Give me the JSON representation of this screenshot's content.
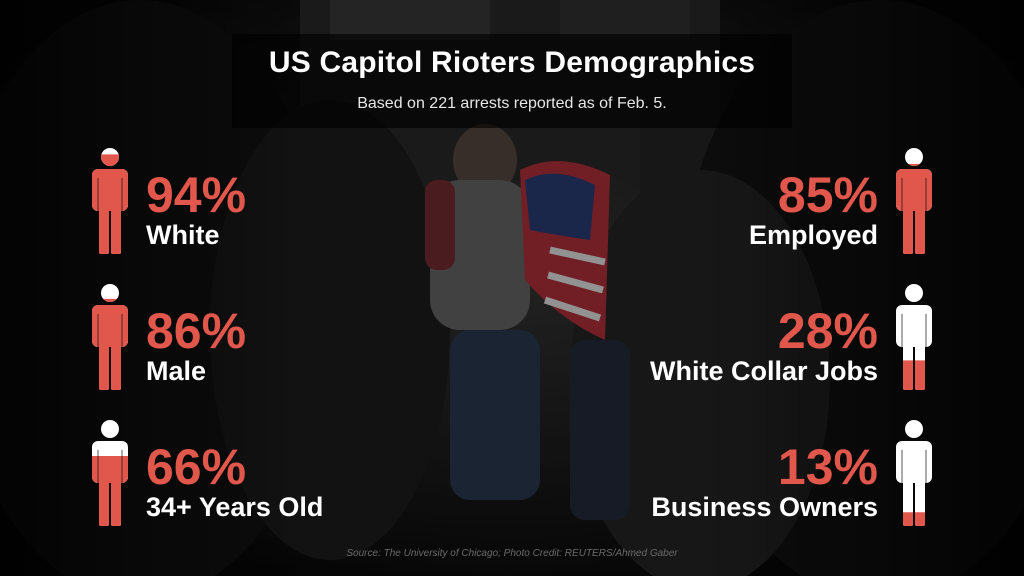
{
  "title": "US Capitol Rioters Demographics",
  "subtitle": "Based on 221 arrests reported as of Feb. 5.",
  "source": "Source: The University of Chicago; Photo Credit: REUTERS/Ahmed Gaber",
  "colors": {
    "accent": "#e1574c",
    "figure_empty": "#ffffff",
    "text": "#ffffff",
    "background": "#0b0b0b"
  },
  "icons": [
    "person-icon"
  ],
  "chart_data": {
    "type": "pictograph",
    "title": "US Capitol Rioters Demographics",
    "subtitle": "Based on 221 arrests reported as of Feb. 5.",
    "categories": [
      "White",
      "Male",
      "34+ Years Old",
      "Employed",
      "White Collar Jobs",
      "Business Owners"
    ],
    "values": [
      94,
      86,
      66,
      85,
      28,
      13
    ],
    "unit": "%",
    "stats": [
      {
        "id": "white",
        "value": 94,
        "display": "94%",
        "label": "White",
        "column": "left"
      },
      {
        "id": "male",
        "value": 86,
        "display": "86%",
        "label": "Male",
        "column": "left"
      },
      {
        "id": "age34",
        "value": 66,
        "display": "66%",
        "label": "34+ Years Old",
        "column": "left"
      },
      {
        "id": "employed",
        "value": 85,
        "display": "85%",
        "label": "Employed",
        "column": "right"
      },
      {
        "id": "whitecollar",
        "value": 28,
        "display": "28%",
        "label": "White Collar Jobs",
        "column": "right"
      },
      {
        "id": "business",
        "value": 13,
        "display": "13%",
        "label": "Business Owners",
        "column": "right"
      }
    ]
  }
}
